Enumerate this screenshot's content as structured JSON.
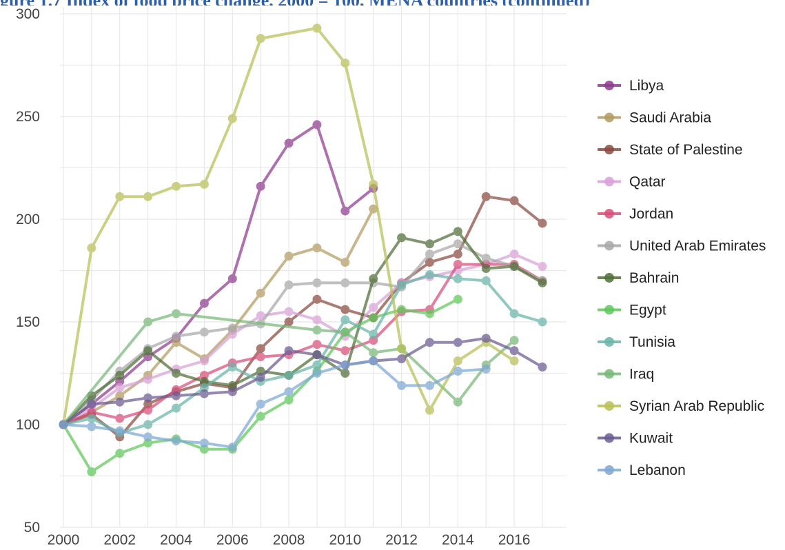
{
  "header": {
    "title_fragment": "gure 1.7 Index of food price change, 2000 = 100, MENA countries (continued)"
  },
  "chart_data": {
    "type": "line",
    "title": "",
    "xlabel": "",
    "ylabel": "",
    "xlim": [
      2000,
      2017
    ],
    "ylim": [
      50,
      300
    ],
    "x_ticks": [
      2000,
      2002,
      2004,
      2006,
      2008,
      2010,
      2012,
      2014,
      2016
    ],
    "y_ticks": [
      50,
      100,
      150,
      200,
      250,
      300
    ],
    "grid": true,
    "legend_position": "right",
    "series": [
      {
        "name": "Libya",
        "color": "#8e3b8e",
        "points": [
          [
            2000,
            100
          ],
          [
            2001,
            110
          ],
          [
            2002,
            121
          ],
          [
            2003,
            133
          ],
          [
            2004,
            142
          ],
          [
            2005,
            159
          ],
          [
            2006,
            171
          ],
          [
            2007,
            216
          ],
          [
            2008,
            237
          ],
          [
            2009,
            246
          ],
          [
            2010,
            204
          ],
          [
            2011,
            215
          ]
        ]
      },
      {
        "name": "Saudi Arabia",
        "color": "#b39a62",
        "points": [
          [
            2000,
            100
          ],
          [
            2001,
            106
          ],
          [
            2002,
            114
          ],
          [
            2003,
            124
          ],
          [
            2004,
            140
          ],
          [
            2005,
            132
          ],
          [
            2006,
            146
          ],
          [
            2007,
            164
          ],
          [
            2008,
            182
          ],
          [
            2009,
            186
          ],
          [
            2010,
            179
          ],
          [
            2011,
            205
          ]
        ]
      },
      {
        "name": "State of Palestine",
        "color": "#8b4a3f",
        "points": [
          [
            2000,
            100
          ],
          [
            2001,
            105
          ],
          [
            2002,
            94
          ],
          [
            2003,
            110
          ],
          [
            2004,
            116
          ],
          [
            2005,
            120
          ],
          [
            2006,
            118
          ],
          [
            2007,
            137
          ],
          [
            2008,
            150
          ],
          [
            2009,
            161
          ],
          [
            2010,
            156
          ],
          [
            2011,
            152
          ],
          [
            2012,
            169
          ],
          [
            2013,
            179
          ],
          [
            2014,
            183
          ],
          [
            2015,
            211
          ],
          [
            2016,
            209
          ],
          [
            2017,
            198
          ]
        ]
      },
      {
        "name": "Qatar",
        "color": "#d8a0d8",
        "points": [
          [
            2000,
            100
          ],
          [
            2001,
            108
          ],
          [
            2002,
            118
          ],
          [
            2003,
            122
          ],
          [
            2004,
            127
          ],
          [
            2005,
            131
          ],
          [
            2006,
            144
          ],
          [
            2007,
            153
          ],
          [
            2008,
            155
          ],
          [
            2009,
            151
          ],
          [
            2010,
            143
          ],
          [
            2011,
            157
          ],
          [
            2012,
            169
          ],
          [
            2013,
            172
          ],
          [
            2014,
            175
          ],
          [
            2015,
            178
          ],
          [
            2016,
            183
          ],
          [
            2017,
            177
          ]
        ]
      },
      {
        "name": "Jordan",
        "color": "#d84f7a",
        "points": [
          [
            2000,
            100
          ],
          [
            2001,
            106
          ],
          [
            2002,
            103
          ],
          [
            2003,
            107
          ],
          [
            2004,
            117
          ],
          [
            2005,
            124
          ],
          [
            2006,
            130
          ],
          [
            2007,
            133
          ],
          [
            2008,
            134
          ],
          [
            2009,
            139
          ],
          [
            2010,
            136
          ],
          [
            2011,
            141
          ],
          [
            2012,
            155
          ],
          [
            2013,
            156
          ],
          [
            2014,
            178
          ],
          [
            2015,
            178
          ],
          [
            2016,
            178
          ],
          [
            2017,
            170
          ]
        ]
      },
      {
        "name": "United Arab Emirates",
        "color": "#a8a8a8",
        "points": [
          [
            2000,
            100
          ],
          [
            2001,
            112
          ],
          [
            2002,
            126
          ],
          [
            2003,
            137
          ],
          [
            2004,
            143
          ],
          [
            2005,
            145
          ],
          [
            2006,
            147
          ],
          [
            2007,
            149
          ],
          [
            2008,
            168
          ],
          [
            2009,
            169
          ],
          [
            2010,
            169
          ],
          [
            2011,
            169
          ],
          [
            2012,
            167
          ],
          [
            2013,
            183
          ],
          [
            2014,
            188
          ],
          [
            2015,
            181
          ],
          [
            2016,
            177
          ],
          [
            2017,
            170
          ]
        ]
      },
      {
        "name": "Bahrain",
        "color": "#4f6e37",
        "points": [
          [
            2000,
            100
          ],
          [
            2001,
            114
          ],
          [
            2002,
            124
          ],
          [
            2003,
            136
          ],
          [
            2004,
            125
          ],
          [
            2005,
            121
          ],
          [
            2006,
            119
          ],
          [
            2007,
            126
          ],
          [
            2008,
            124
          ],
          [
            2009,
            134
          ],
          [
            2010,
            125
          ],
          [
            2011,
            171
          ],
          [
            2012,
            191
          ],
          [
            2013,
            188
          ],
          [
            2014,
            194
          ],
          [
            2015,
            176
          ],
          [
            2016,
            177
          ],
          [
            2017,
            169
          ]
        ]
      },
      {
        "name": "Egypt",
        "color": "#5fc85a",
        "points": [
          [
            2000,
            100
          ],
          [
            2001,
            77
          ],
          [
            2002,
            86
          ],
          [
            2003,
            91
          ],
          [
            2004,
            93
          ],
          [
            2005,
            88
          ],
          [
            2006,
            88
          ],
          [
            2007,
            104
          ],
          [
            2008,
            112
          ],
          [
            2009,
            126
          ],
          [
            2010,
            145
          ],
          [
            2011,
            152
          ],
          [
            2012,
            156
          ],
          [
            2013,
            154
          ],
          [
            2014,
            161
          ]
        ]
      },
      {
        "name": "Tunisia",
        "color": "#68b4a8",
        "points": [
          [
            2000,
            100
          ],
          [
            2001,
            103
          ],
          [
            2002,
            96
          ],
          [
            2003,
            100
          ],
          [
            2004,
            108
          ],
          [
            2005,
            118
          ],
          [
            2006,
            128
          ],
          [
            2007,
            121
          ],
          [
            2008,
            124
          ],
          [
            2009,
            129
          ],
          [
            2010,
            151
          ],
          [
            2011,
            144
          ],
          [
            2012,
            168
          ],
          [
            2013,
            173
          ],
          [
            2014,
            171
          ],
          [
            2015,
            170
          ],
          [
            2016,
            154
          ],
          [
            2017,
            150
          ]
        ]
      },
      {
        "name": "Iraq",
        "color": "#78b878",
        "points": [
          [
            2000,
            100
          ],
          [
            2003,
            150
          ],
          [
            2004,
            154
          ],
          [
            2009,
            146
          ],
          [
            2010,
            145
          ],
          [
            2011,
            135
          ],
          [
            2012,
            137
          ],
          [
            2014,
            111
          ],
          [
            2015,
            129
          ],
          [
            2016,
            141
          ]
        ]
      },
      {
        "name": "Syrian Arab Republic",
        "color": "#b8bf55",
        "points": [
          [
            2000,
            100
          ],
          [
            2001,
            186
          ],
          [
            2002,
            211
          ],
          [
            2003,
            211
          ],
          [
            2004,
            216
          ],
          [
            2005,
            217
          ],
          [
            2006,
            249
          ],
          [
            2007,
            288
          ],
          [
            2009,
            293
          ],
          [
            2010,
            276
          ],
          [
            2011,
            217
          ],
          [
            2012,
            137
          ],
          [
            2013,
            107
          ],
          [
            2014,
            131
          ],
          [
            2015,
            140
          ],
          [
            2016,
            131
          ]
        ]
      },
      {
        "name": "Kuwait",
        "color": "#6b5a92",
        "points": [
          [
            2000,
            100
          ],
          [
            2001,
            110
          ],
          [
            2002,
            111
          ],
          [
            2003,
            113
          ],
          [
            2004,
            114
          ],
          [
            2005,
            115
          ],
          [
            2006,
            116
          ],
          [
            2007,
            123
          ],
          [
            2008,
            136
          ],
          [
            2009,
            134
          ],
          [
            2010,
            129
          ],
          [
            2011,
            131
          ],
          [
            2012,
            132
          ],
          [
            2013,
            140
          ],
          [
            2014,
            140
          ],
          [
            2015,
            142
          ],
          [
            2016,
            136
          ],
          [
            2017,
            128
          ]
        ]
      },
      {
        "name": "Lebanon",
        "color": "#7ea8d4",
        "points": [
          [
            2000,
            100
          ],
          [
            2001,
            99
          ],
          [
            2002,
            97
          ],
          [
            2003,
            94
          ],
          [
            2004,
            92
          ],
          [
            2005,
            91
          ],
          [
            2006,
            89
          ],
          [
            2007,
            110
          ],
          [
            2008,
            116
          ],
          [
            2009,
            125
          ],
          [
            2010,
            129
          ],
          [
            2011,
            131
          ],
          [
            2012,
            119
          ],
          [
            2013,
            119
          ],
          [
            2014,
            126
          ],
          [
            2015,
            127
          ]
        ]
      }
    ]
  }
}
